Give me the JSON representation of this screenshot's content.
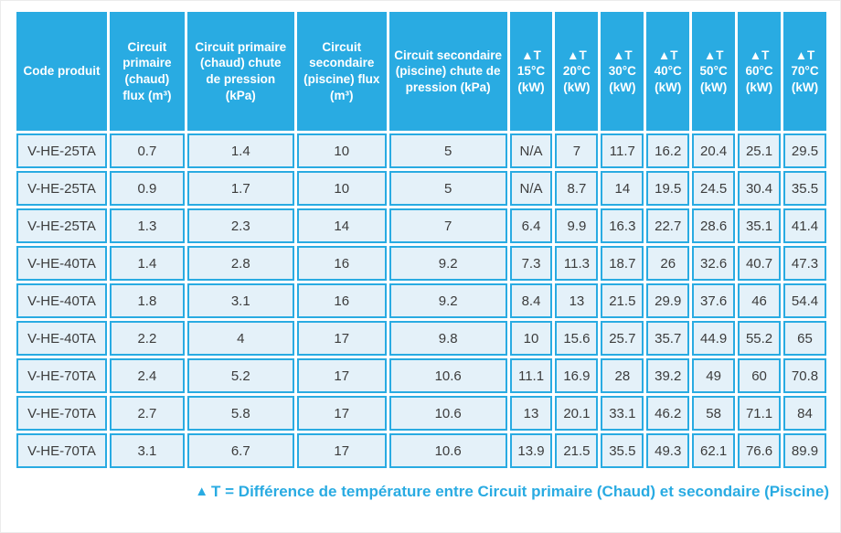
{
  "colors": {
    "accent": "#29abe2",
    "cell_background": "#e4f1f9",
    "cell_text": "#3c3c3c",
    "header_text": "#ffffff"
  },
  "table": {
    "text_columns": [
      {
        "label": "Code produit"
      },
      {
        "label": "Circuit primaire (chaud) flux (m³)"
      },
      {
        "label": "Circuit primaire (chaud) chute de pression (kPa)"
      },
      {
        "label": "Circuit secondaire (piscine) flux (m³)"
      },
      {
        "label": "Circuit secondaire (piscine) chute de pression (kPa)"
      }
    ],
    "delta_columns": [
      {
        "symbol": "▲T",
        "temp": "15°C",
        "unit": "(kW)"
      },
      {
        "symbol": "▲T",
        "temp": "20°C",
        "unit": "(kW)"
      },
      {
        "symbol": "▲T",
        "temp": "30°C",
        "unit": "(kW)"
      },
      {
        "symbol": "▲T",
        "temp": "40°C",
        "unit": "(kW)"
      },
      {
        "symbol": "▲T",
        "temp": "50°C",
        "unit": "(kW)"
      },
      {
        "symbol": "▲T",
        "temp": "60°C",
        "unit": "(kW)"
      },
      {
        "symbol": "▲T",
        "temp": "70°C",
        "unit": "(kW)"
      }
    ],
    "rows": [
      [
        "V-HE-25TA",
        "0.7",
        "1.4",
        "10",
        "5",
        "N/A",
        "7",
        "11.7",
        "16.2",
        "20.4",
        "25.1",
        "29.5"
      ],
      [
        "V-HE-25TA",
        "0.9",
        "1.7",
        "10",
        "5",
        "N/A",
        "8.7",
        "14",
        "19.5",
        "24.5",
        "30.4",
        "35.5"
      ],
      [
        "V-HE-25TA",
        "1.3",
        "2.3",
        "14",
        "7",
        "6.4",
        "9.9",
        "16.3",
        "22.7",
        "28.6",
        "35.1",
        "41.4"
      ],
      [
        "V-HE-40TA",
        "1.4",
        "2.8",
        "16",
        "9.2",
        "7.3",
        "11.3",
        "18.7",
        "26",
        "32.6",
        "40.7",
        "47.3"
      ],
      [
        "V-HE-40TA",
        "1.8",
        "3.1",
        "16",
        "9.2",
        "8.4",
        "13",
        "21.5",
        "29.9",
        "37.6",
        "46",
        "54.4"
      ],
      [
        "V-HE-40TA",
        "2.2",
        "4",
        "17",
        "9.8",
        "10",
        "15.6",
        "25.7",
        "35.7",
        "44.9",
        "55.2",
        "65"
      ],
      [
        "V-HE-70TA",
        "2.4",
        "5.2",
        "17",
        "10.6",
        "11.1",
        "16.9",
        "28",
        "39.2",
        "49",
        "60",
        "70.8"
      ],
      [
        "V-HE-70TA",
        "2.7",
        "5.8",
        "17",
        "10.6",
        "13",
        "20.1",
        "33.1",
        "46.2",
        "58",
        "71.1",
        "84"
      ],
      [
        "V-HE-70TA",
        "3.1",
        "6.7",
        "17",
        "10.6",
        "13.9",
        "21.5",
        "35.5",
        "49.3",
        "62.1",
        "76.6",
        "89.9"
      ]
    ]
  },
  "footnote": {
    "symbol": "▲",
    "text": "T = Différence de température entre Circuit primaire (Chaud) et secondaire (Piscine)"
  }
}
